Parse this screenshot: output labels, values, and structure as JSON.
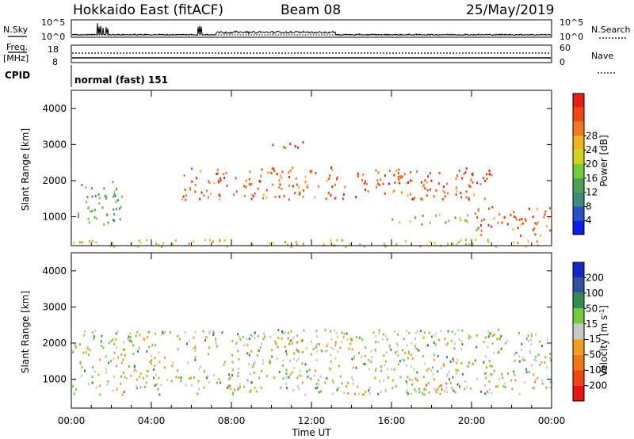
{
  "header": {
    "station": "Hokkaido East (fitACF)",
    "beam": "Beam 08",
    "date": "25/May/2019"
  },
  "top_panels": {
    "nsky_label": "N.Sky",
    "nsearch_label": "N.Search",
    "freq_label_1": "Freq.",
    "freq_label_2": "[MHz]",
    "nave_label": "Nave",
    "cpid_label": "CPID",
    "cpid_text": "normal (fast) 151",
    "left_ticks": {
      "nsky_top": "10^5",
      "nsky_bottom": "10^0",
      "freq_top": "18",
      "freq_bottom": "8"
    },
    "right_ticks": {
      "nsearch_top": "10^5",
      "nsearch_bottom": "10^0",
      "nave_top": "60",
      "nave_bottom": "0"
    }
  },
  "chart_data": [
    {
      "type": "heatmap",
      "panel": "power",
      "ylabel": "Slant Range [km]",
      "ylim": [
        200,
        4500
      ],
      "yticks": [
        1000,
        2000,
        3000,
        4000
      ],
      "xlim": [
        0,
        24
      ],
      "colorbar": {
        "label": "Power [dB]",
        "ticks": [
          "4",
          "8",
          "12",
          "16",
          "20",
          "24",
          "28"
        ],
        "colors": [
          "#0a1ee6",
          "#2850c8",
          "#3c8c78",
          "#50a050",
          "#78c83c",
          "#d2d21e",
          "#f0b41e",
          "#f0781e",
          "#f04614",
          "#e61e14"
        ]
      },
      "scatter_regions": [
        {
          "t": [
            0.3,
            2.5
          ],
          "r": [
            700,
            2000
          ],
          "level": 0.35
        },
        {
          "t": [
            5.5,
            21
          ],
          "r": [
            1500,
            2400
          ],
          "level": 0.85
        },
        {
          "t": [
            10,
            12
          ],
          "r": [
            2900,
            3100
          ],
          "level": 0.9
        },
        {
          "t": [
            20,
            24
          ],
          "r": [
            500,
            1300
          ],
          "level": 0.85
        },
        {
          "t": [
            16,
            20
          ],
          "r": [
            800,
            1100
          ],
          "level": 0.5
        },
        {
          "t": [
            0,
            24
          ],
          "r": [
            200,
            400
          ],
          "level": 0.6
        }
      ]
    },
    {
      "type": "heatmap",
      "panel": "velocity",
      "ylabel": "Slant Range [km]",
      "xlabel": "Time UT",
      "ylim": [
        200,
        4500
      ],
      "yticks": [
        1000,
        2000,
        3000,
        4000
      ],
      "xlim": [
        0,
        24
      ],
      "xticklabels": [
        "00:00",
        "04:00",
        "08:00",
        "12:00",
        "16:00",
        "20:00",
        "00:00"
      ],
      "colorbar": {
        "label": "Velocity [m s^-1]",
        "ticks": [
          "200",
          "100",
          "50",
          "15",
          "-15",
          "-50",
          "-100",
          "-200"
        ],
        "colors": [
          "#1428c8",
          "#3250a0",
          "#328c50",
          "#78c83c",
          "#c8c8c8",
          "#f0a01e",
          "#f07814",
          "#f04614",
          "#e61414"
        ]
      },
      "scatter_regions": [
        {
          "t": [
            0,
            24
          ],
          "r": [
            600,
            2400
          ],
          "level": 0.45
        },
        {
          "t": [
            16.5,
            19.5
          ],
          "r": [
            650,
            1050
          ],
          "level": 0.65
        },
        {
          "t": [
            10,
            14
          ],
          "r": [
            1800,
            2200
          ],
          "level": 0.62
        }
      ]
    }
  ]
}
